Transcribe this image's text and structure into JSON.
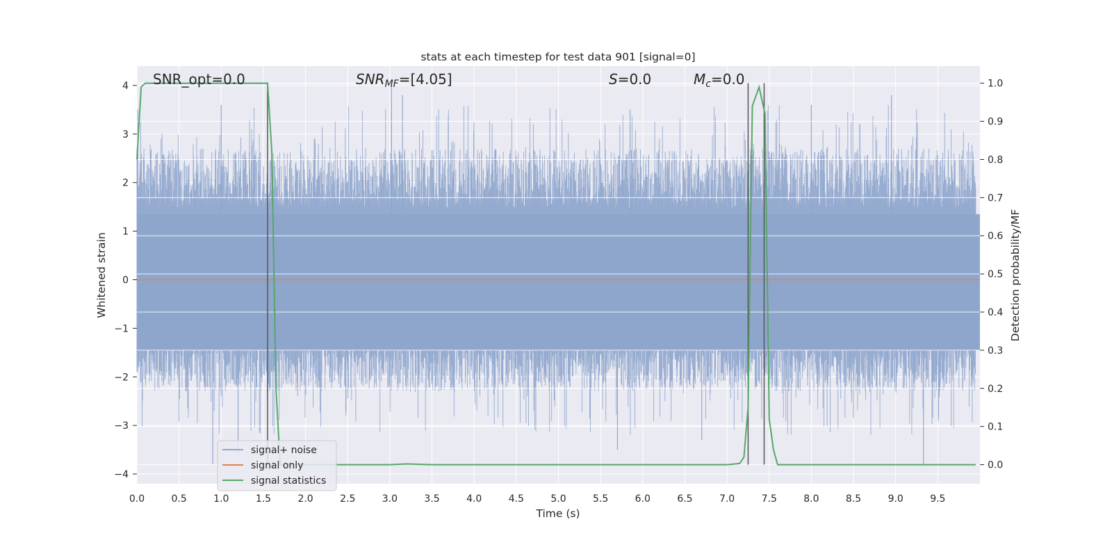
{
  "chart_data": {
    "type": "line",
    "title": "stats at each timestep for test data 901 [signal=0]",
    "xlabel": "Time (s)",
    "ylabel": "Whitened strain",
    "ylabel_right": "Detection probability/MF",
    "xlim": [
      0.0,
      10.0
    ],
    "ylim": [
      -4.2,
      4.4
    ],
    "ylim_right": [
      -0.05,
      1.045
    ],
    "xticks": [
      "0.0",
      "0.5",
      "1.0",
      "1.5",
      "2.0",
      "2.5",
      "3.0",
      "3.5",
      "4.0",
      "4.5",
      "5.0",
      "5.5",
      "6.0",
      "6.5",
      "7.0",
      "7.5",
      "8.0",
      "8.5",
      "9.0",
      "9.5"
    ],
    "yticks_left": [
      "4",
      "3",
      "2",
      "1",
      "0",
      "−1",
      "−2",
      "−3",
      "−4"
    ],
    "yticks_right": [
      "1.0",
      "0.9",
      "0.8",
      "0.7",
      "0.6",
      "0.5",
      "0.4",
      "0.3",
      "0.2",
      "0.1",
      "0.0"
    ],
    "annotations": {
      "snr_opt": "SNR_opt=0.0",
      "snr_mf_sym": "SNR",
      "snr_mf_sub": "MF",
      "snr_mf_val": "=[4.05]",
      "s_sym": "S",
      "s_val": "=0.0",
      "mc_sym": "M",
      "mc_sub": "c",
      "mc_val": "=0.0"
    },
    "legend": {
      "placement": "lower-left",
      "entries": [
        "signal+ noise",
        "signal only",
        "signal statistics"
      ]
    },
    "colors": {
      "noise": "#8fa6cc",
      "signal_only": "#dd8452",
      "statistics": "#55a868",
      "vlines": "#555555",
      "background": "#eaeaf2",
      "grid": "#ffffff"
    },
    "series": [
      {
        "name": "signal+ noise",
        "envelope_typical": [
          -2.3,
          2.7
        ],
        "peaks": [
          [
            0.01,
            3.5
          ],
          [
            1.0,
            3.6
          ],
          [
            3.02,
            4.0
          ],
          [
            3.15,
            3.8
          ],
          [
            5.85,
            3.5
          ],
          [
            8.0,
            3.6
          ],
          [
            8.95,
            3.8
          ],
          [
            0.9,
            -3.8
          ],
          [
            1.2,
            -3.6
          ],
          [
            5.7,
            -3.5
          ],
          [
            6.7,
            -3.3
          ],
          [
            9.33,
            -3.8
          ]
        ]
      },
      {
        "name": "signal only",
        "x": [
          0.0,
          10.0
        ],
        "y": [
          0.0,
          0.0
        ]
      },
      {
        "name": "signal statistics",
        "axis": "right",
        "x": [
          0.0,
          0.05,
          0.1,
          0.2,
          0.5,
          1.0,
          1.5,
          1.55,
          1.6,
          1.65,
          1.7,
          2.0,
          3.0,
          3.2,
          3.5,
          5.0,
          6.0,
          7.0,
          7.15,
          7.2,
          7.25,
          7.3,
          7.38,
          7.45,
          7.5,
          7.55,
          7.6,
          8.0,
          9.0,
          9.95
        ],
        "y": [
          0.8,
          0.99,
          1.0,
          1.0,
          1.0,
          1.0,
          1.0,
          1.0,
          0.82,
          0.2,
          0.0,
          0.0,
          0.0,
          0.002,
          0.0,
          0.0,
          0.0,
          0.0,
          0.003,
          0.02,
          0.15,
          0.94,
          0.99,
          0.92,
          0.12,
          0.04,
          0.0,
          0.0,
          0.0,
          0.0
        ]
      }
    ],
    "vlines_x": [
      1.55,
      7.25,
      7.44
    ]
  }
}
